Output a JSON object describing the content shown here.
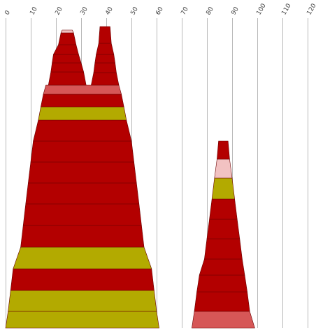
{
  "colors": {
    "dark_red": "#b30000",
    "olive": "#b3aa00",
    "salmon": "#d65757",
    "pink": "#f2c2c2",
    "grid": "#b8b8b8",
    "tick_text": "#444444"
  },
  "chart_data": {
    "type": "area",
    "title": "",
    "xlabel": "",
    "ylabel": "",
    "xlim": [
      0,
      120
    ],
    "x_ticks": [
      "0",
      "10",
      "20",
      "30",
      "40",
      "50",
      "60",
      "70",
      "80",
      "90",
      "100",
      "110",
      "120"
    ],
    "grid": "vertical",
    "legend": "none",
    "shapes": [
      {
        "name": "",
        "bands": [
          {
            "left": 0,
            "right": 61,
            "color": "olive"
          },
          {
            "left": 1,
            "right": 60,
            "color": "olive"
          },
          {
            "left": 2,
            "right": 59,
            "color": "dark_red"
          },
          {
            "left": 3,
            "right": 58,
            "color": "olive"
          },
          {
            "left": 6,
            "right": 55,
            "color": "dark_red"
          },
          {
            "left": 7,
            "right": 54,
            "color": "dark_red"
          },
          {
            "left": 8,
            "right": 53,
            "color": "dark_red"
          },
          {
            "left": 9,
            "right": 52,
            "color": "dark_red"
          },
          {
            "left": 10,
            "right": 51,
            "color": "dark_red"
          },
          {
            "left": 11,
            "right": 50,
            "color": "dark_red"
          },
          {
            "left": 13,
            "right": 48,
            "color": "olive"
          },
          {
            "left": 14,
            "right": 47,
            "color": "dark_red"
          },
          {
            "left": 15,
            "right": 46,
            "color": "salmon"
          }
        ],
        "peaks": [
          {
            "bands": [
              {
                "left": 17,
                "right": 32,
                "color": "dark_red"
              },
              {
                "left": 18,
                "right": 31,
                "color": "dark_red"
              },
              {
                "left": 18.5,
                "right": 30,
                "color": "dark_red"
              },
              {
                "left": 19,
                "right": 29,
                "color": "dark_red"
              },
              {
                "left": 21,
                "right": 28,
                "color": "dark_red"
              },
              {
                "left": 22,
                "right": 27,
                "color": "pink"
              }
            ]
          },
          {
            "bands": [
              {
                "left": 34,
                "right": 45,
                "color": "dark_red"
              },
              {
                "left": 35,
                "right": 44,
                "color": "dark_red"
              },
              {
                "left": 35.5,
                "right": 43.5,
                "color": "dark_red"
              },
              {
                "left": 36,
                "right": 43,
                "color": "dark_red"
              },
              {
                "left": 37,
                "right": 42,
                "color": "dark_red"
              }
            ]
          }
        ]
      },
      {
        "name": "",
        "bands": [
          {
            "left": 74,
            "right": 99,
            "color": "salmon"
          },
          {
            "left": 75,
            "right": 97,
            "color": "dark_red"
          },
          {
            "left": 76,
            "right": 96,
            "color": "dark_red"
          },
          {
            "left": 77,
            "right": 95,
            "color": "dark_red"
          },
          {
            "left": 79,
            "right": 94,
            "color": "dark_red"
          },
          {
            "left": 80,
            "right": 93,
            "color": "dark_red"
          },
          {
            "left": 81,
            "right": 92,
            "color": "dark_red"
          },
          {
            "left": 82,
            "right": 91,
            "color": "olive"
          },
          {
            "left": 83,
            "right": 90,
            "color": "pink"
          },
          {
            "left": 84,
            "right": 89,
            "color": "dark_red"
          }
        ]
      }
    ]
  }
}
